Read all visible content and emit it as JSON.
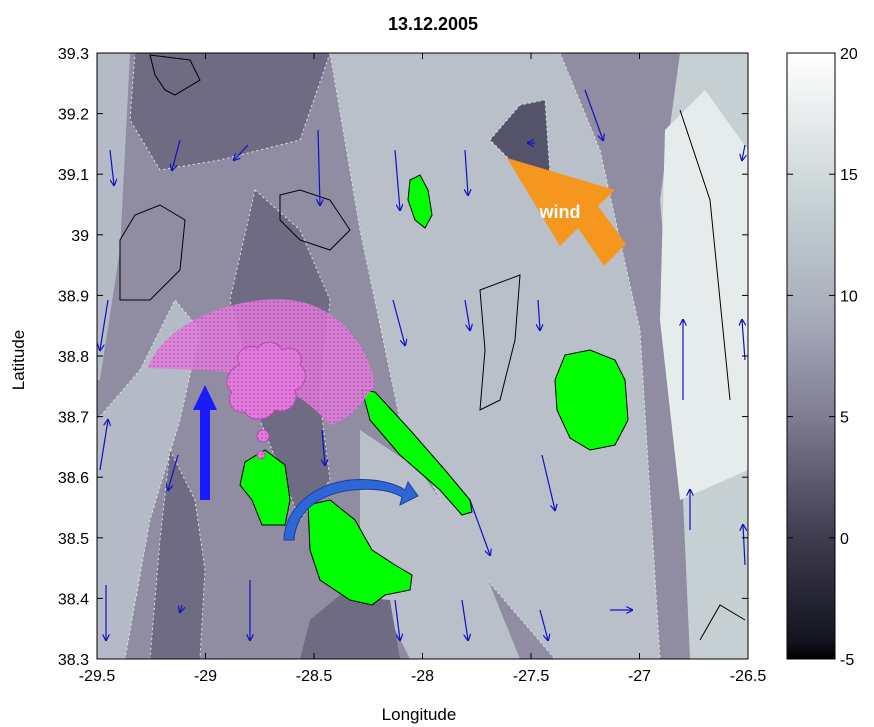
{
  "chart_data": {
    "type": "heatmap",
    "title": "13.12.2005",
    "xlabel": "Longitude",
    "ylabel": "Latitude",
    "xlim": [
      -29.5,
      -26.5
    ],
    "ylim": [
      38.3,
      39.3
    ],
    "xticks": [
      -29.5,
      -29,
      -28.5,
      -28,
      -27.5,
      -27,
      -26.5
    ],
    "xtick_labels": [
      "-29.5",
      "-29",
      "-28.5",
      "-28",
      "-27.5",
      "-27",
      "-26.5"
    ],
    "yticks": [
      38.3,
      38.4,
      38.5,
      38.6,
      38.7,
      38.8,
      38.9,
      39,
      39.1,
      39.2,
      39.3
    ],
    "ytick_labels": [
      "38.3",
      "38.4",
      "38.5",
      "38.6",
      "38.7",
      "38.8",
      "38.9",
      "39",
      "39.1",
      "39.2",
      "39.3"
    ],
    "colorbar": {
      "range": [
        -5,
        20
      ],
      "ticks": [
        -5,
        0,
        5,
        10,
        15,
        20
      ],
      "tick_labels": [
        "-5",
        "0",
        "5",
        "10",
        "15",
        "20"
      ],
      "colormap": "bone"
    },
    "annotations": [
      {
        "label": "wind",
        "kind": "arrow",
        "color": "#f5961e"
      }
    ],
    "colors": {
      "island": "#00ff00",
      "wind_vector": "#1010c8",
      "plume": "#e070d8",
      "blue_arrow": "#1a1aff",
      "curved_arrow": "#2e66d6"
    }
  }
}
